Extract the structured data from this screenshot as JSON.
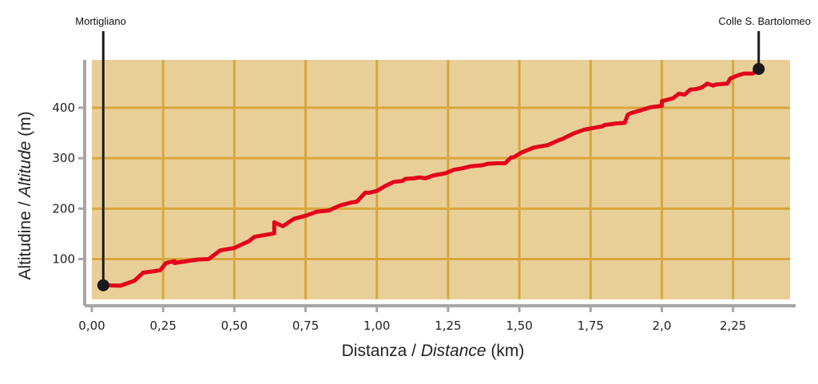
{
  "chart_data": {
    "type": "area",
    "xlabel": {
      "main": "Distanza",
      "sep": " / ",
      "italic": "Distance",
      "unit": " (km)"
    },
    "ylabel": {
      "main": "Altitudine",
      "sep": " / ",
      "italic": "Altitude",
      "unit": " (m)"
    },
    "xlim": [
      0,
      2.45
    ],
    "ylim": [
      20,
      495
    ],
    "x_ticks": [
      0,
      0.25,
      0.5,
      0.75,
      1.0,
      1.25,
      1.5,
      1.75,
      2.0,
      2.25
    ],
    "x_tick_labels": [
      "0,00",
      "0,25",
      "0,50",
      "0,75",
      "1,00",
      "1,25",
      "1,50",
      "1,75",
      "2,0",
      "2,25"
    ],
    "y_ticks": [
      100,
      200,
      300,
      400
    ],
    "y_tick_labels": [
      "100",
      "200",
      "300",
      "400"
    ],
    "grid": true,
    "colors": {
      "plot_bg": "#e8cf98",
      "grid": "#d9a63c",
      "line": "#e3001b",
      "axis": "#a6a6a6",
      "marker": "#1a1a1a"
    },
    "series": [
      {
        "x": [
          0.04,
          0.1,
          0.15,
          0.18,
          0.22,
          0.24,
          0.26,
          0.29,
          0.29,
          0.37,
          0.41,
          0.45,
          0.48,
          0.5,
          0.53,
          0.55,
          0.57,
          0.6,
          0.64,
          0.64,
          0.67,
          0.71,
          0.75,
          0.79,
          0.83,
          0.87,
          0.91,
          0.93,
          0.96,
          0.97,
          1.0,
          1.03,
          1.06,
          1.09,
          1.1,
          1.13,
          1.15,
          1.17,
          1.2,
          1.24,
          1.27,
          1.3,
          1.33,
          1.37,
          1.39,
          1.42,
          1.45,
          1.47,
          1.48,
          1.51,
          1.52,
          1.55,
          1.57,
          1.6,
          1.64,
          1.65,
          1.69,
          1.71,
          1.73,
          1.75,
          1.79,
          1.8,
          1.84,
          1.87,
          1.88,
          1.89,
          1.92,
          1.96,
          2.0,
          2.0,
          2.04,
          2.06,
          2.08,
          2.1,
          2.12,
          2.14,
          2.16,
          2.18,
          2.19,
          2.21,
          2.23,
          2.24,
          2.27,
          2.29,
          2.32,
          2.34
        ],
        "y": [
          48,
          47,
          57,
          73,
          76,
          78,
          92,
          96,
          92,
          99,
          100,
          117,
          120,
          122,
          130,
          135,
          144,
          147,
          151,
          173,
          165,
          180,
          186,
          194,
          196,
          206,
          212,
          214,
          232,
          231,
          235,
          245,
          253,
          255,
          259,
          260,
          262,
          260,
          266,
          270,
          277,
          280,
          284,
          286,
          289,
          290,
          290,
          301,
          302,
          312,
          314,
          321,
          323,
          326,
          336,
          338,
          349,
          353,
          357,
          359,
          363,
          366,
          369,
          370,
          386,
          389,
          394,
          401,
          404,
          413,
          419,
          428,
          426,
          436,
          437,
          440,
          448,
          444,
          446,
          447,
          448,
          458,
          465,
          468,
          468,
          477
        ]
      }
    ],
    "markers": [
      {
        "label": "Mortigliano",
        "x": 0.04,
        "y": 48
      },
      {
        "label": "Colle S. Bartolomeo",
        "x": 2.34,
        "y": 477
      }
    ]
  }
}
